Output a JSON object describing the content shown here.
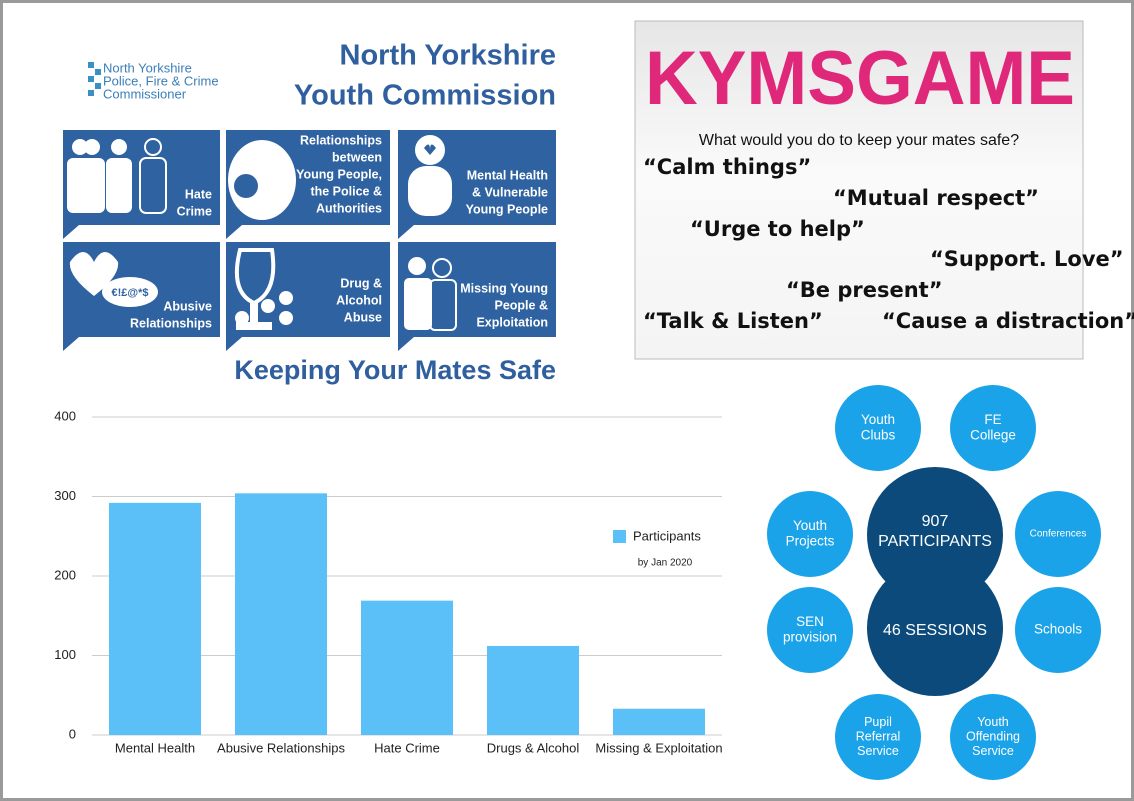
{
  "header": {
    "logo": [
      "North Yorkshire",
      "Police, Fire & Crime",
      "Commissioner"
    ],
    "title": [
      "North Yorkshire",
      "Youth Commission"
    ],
    "subtitle": "Keeping Your Mates Safe"
  },
  "tiles": [
    {
      "label": [
        "Hate",
        "Crime"
      ]
    },
    {
      "label": [
        "Relationships",
        "between",
        "Young People,",
        "the Police &",
        "Authorities"
      ]
    },
    {
      "label": [
        "Mental Health",
        "& Vulnerable",
        "Young People"
      ]
    },
    {
      "label": [
        "Abusive",
        "Relationships"
      ],
      "icon_text": "€!£@*$"
    },
    {
      "label": [
        "Drug &",
        "Alcohol",
        "Abuse"
      ]
    },
    {
      "label": [
        "Missing Young",
        "People &",
        "Exploitation"
      ]
    }
  ],
  "kymsgame": {
    "title": "KYMSGAME",
    "question": "What would you do to keep your mates safe?",
    "quotes": [
      "“Calm things”",
      "“Mutual respect”",
      "“Urge to help”",
      "“Support. Love”",
      "“Be present”",
      "“Talk & Listen”",
      "“Cause a distraction”"
    ]
  },
  "chart_data": {
    "type": "bar",
    "subtitle": "by Jan 2020",
    "categories": [
      "Mental Health",
      "Abusive Relationships",
      "Hate Crime",
      "Drugs & Alcohol",
      "Missing & Exploitation"
    ],
    "series": [
      {
        "name": "Participants",
        "color": "#5bc0f8",
        "values": [
          292,
          304,
          169,
          112,
          33
        ]
      }
    ],
    "ylim": [
      0,
      400
    ],
    "yticks": [
      0,
      100,
      200,
      300,
      400
    ],
    "grid": true,
    "legend": "right"
  },
  "bubbles": {
    "center": [
      "907",
      "PARTICIPANTS",
      "46 SESSIONS"
    ],
    "settings": [
      [
        "Youth",
        "Clubs"
      ],
      [
        "FE",
        "College"
      ],
      [
        "Youth",
        "Projects"
      ],
      [
        "Conferences"
      ],
      [
        "SEN",
        "provision"
      ],
      [
        "Schools"
      ],
      [
        "Pupil",
        "Referral",
        "Service"
      ],
      [
        "Youth",
        "Offending",
        "Service"
      ]
    ]
  }
}
